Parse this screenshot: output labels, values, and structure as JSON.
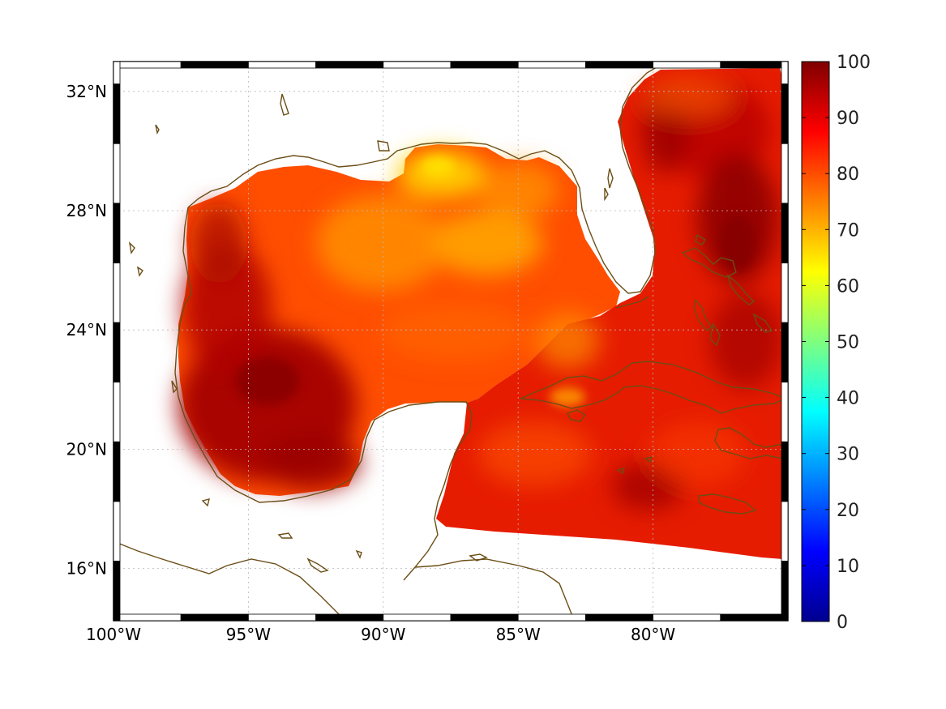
{
  "map": {
    "lat_labels": [
      "32°N",
      "28°N",
      "24°N",
      "20°N",
      "16°N"
    ],
    "lon_labels": [
      "100°W",
      "95°W",
      "90°W",
      "85°W",
      "80°W"
    ],
    "lat_values": [
      32,
      28,
      24,
      20,
      16
    ],
    "lon_values": [
      -100,
      -95,
      -90,
      -85,
      -80
    ],
    "lon_range": [
      -100,
      -75
    ],
    "lat_range": [
      14.25,
      33
    ],
    "grid": true,
    "coastline_color": "#6b4e16",
    "field_colors": {
      "very_high": "#9b0000",
      "high": "#d80c00",
      "mid": "#ff3d00",
      "lower": "#ff8a00",
      "low": "#ffc400"
    }
  },
  "colorbar": {
    "ticks": [
      "100",
      "90",
      "80",
      "70",
      "60",
      "50",
      "40",
      "30",
      "20",
      "10",
      "0"
    ],
    "tick_values": [
      100,
      90,
      80,
      70,
      60,
      50,
      40,
      30,
      20,
      10,
      0
    ],
    "range": [
      0,
      100
    ],
    "colormap": "jet",
    "orientation": "vertical",
    "placement": "right"
  }
}
